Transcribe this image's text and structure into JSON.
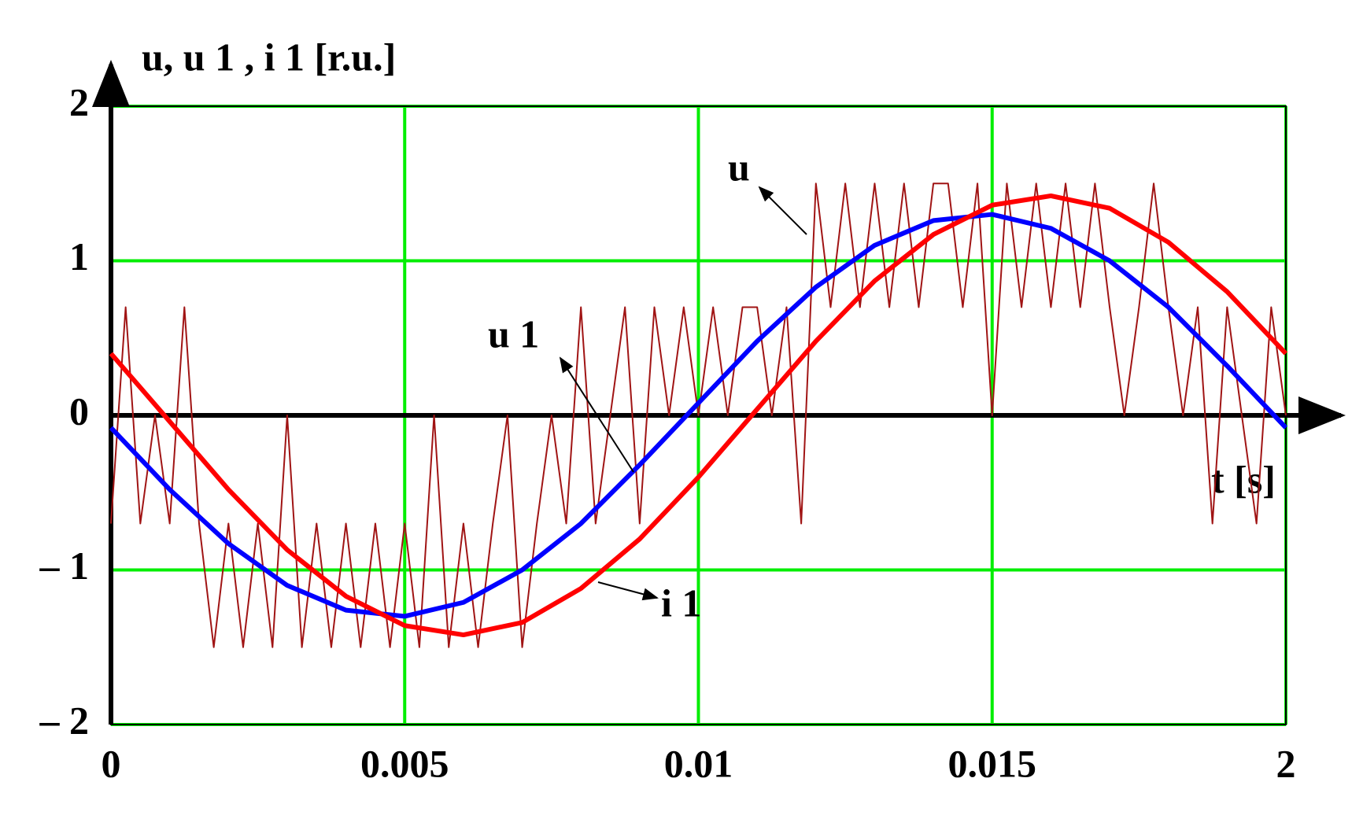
{
  "chart_data": {
    "type": "line",
    "y_label": "u, u 1 , i 1 [r.u.]",
    "x_label": "t [s]",
    "xlim": [
      0,
      0.02
    ],
    "ylim": [
      -2,
      2
    ],
    "xticks": [
      0,
      0.005,
      0.01,
      0.015,
      {
        "value": 0.02,
        "label": "2"
      }
    ],
    "yticks": [
      {
        "value": -2,
        "label": "– 2"
      },
      {
        "value": -1,
        "label": "– 1"
      },
      0,
      1,
      2
    ],
    "grid": true,
    "grid_color": "#00ee00",
    "series": [
      {
        "name": "u",
        "color": "#a01414",
        "width": 2,
        "x": [
          0,
          0.00025,
          0.0005,
          0.00075,
          0.001,
          0.00125,
          0.0015,
          0.00175,
          0.002,
          0.00225,
          0.0025,
          0.00275,
          0.003,
          0.00325,
          0.0035,
          0.00375,
          0.004,
          0.00425,
          0.0045,
          0.00475,
          0.005,
          0.00525,
          0.0055,
          0.00575,
          0.006,
          0.00625,
          0.0065,
          0.00675,
          0.007,
          0.00725,
          0.0075,
          0.00775,
          0.008,
          0.00825,
          0.0085,
          0.00875,
          0.009,
          0.00925,
          0.0095,
          0.00975,
          0.01,
          0.01025,
          0.0105,
          0.01075,
          0.011,
          0.01125,
          0.0115,
          0.01175,
          0.012,
          0.01225,
          0.0125,
          0.01275,
          0.013,
          0.01325,
          0.0135,
          0.01375,
          0.014,
          0.01425,
          0.0145,
          0.01475,
          0.015,
          0.01525,
          0.0155,
          0.01575,
          0.016,
          0.01625,
          0.0165,
          0.01675,
          0.017,
          0.01725,
          0.0175,
          0.01775,
          0.018,
          0.01825,
          0.0185,
          0.01875,
          0.019,
          0.01925,
          0.0195,
          0.01975,
          0.02
        ],
        "values": [
          -0.7,
          0.7,
          -0.7,
          0,
          -0.7,
          0.7,
          -0.7,
          -1.5,
          -0.7,
          -1.5,
          -0.7,
          -1.5,
          0,
          -1.5,
          -0.7,
          -1.5,
          -0.7,
          -1.5,
          -0.7,
          -1.5,
          -0.7,
          -1.5,
          0,
          -1.5,
          -0.7,
          -1.5,
          -0.7,
          0,
          -1.5,
          -0.7,
          0,
          -0.7,
          0.7,
          -0.7,
          0,
          0.7,
          -0.7,
          0.7,
          0,
          0.7,
          0,
          0.7,
          0,
          0.7,
          0.7,
          0,
          0.7,
          -0.7,
          1.5,
          0.7,
          1.5,
          0.7,
          1.5,
          0.7,
          1.5,
          0.7,
          1.5,
          1.5,
          0.7,
          1.5,
          0,
          1.5,
          0.7,
          1.5,
          0.7,
          1.5,
          0.7,
          1.5,
          0.7,
          0,
          0.7,
          1.5,
          0.7,
          0,
          0.7,
          -0.7,
          0.7,
          0,
          -0.7,
          0.7,
          0
        ]
      },
      {
        "name": "u 1",
        "color": "#0000ff",
        "width": 6,
        "x": [
          0,
          0.001,
          0.002,
          0.003,
          0.004,
          0.005,
          0.006,
          0.007,
          0.008,
          0.009,
          0.01,
          0.011,
          0.012,
          0.013,
          0.014,
          0.015,
          0.016,
          0.017,
          0.018,
          0.019,
          0.02
        ],
        "values": [
          -0.08,
          -0.48,
          -0.83,
          -1.1,
          -1.26,
          -1.3,
          -1.21,
          -1,
          -0.7,
          -0.32,
          0.08,
          0.48,
          0.83,
          1.1,
          1.26,
          1.3,
          1.21,
          1,
          0.7,
          0.32,
          -0.08
        ]
      },
      {
        "name": "i 1",
        "color": "#ff0000",
        "width": 6,
        "x": [
          0,
          0.001,
          0.002,
          0.003,
          0.004,
          0.005,
          0.006,
          0.007,
          0.008,
          0.009,
          0.01,
          0.011,
          0.012,
          0.013,
          0.014,
          0.015,
          0.016,
          0.017,
          0.018,
          0.019,
          0.02
        ],
        "values": [
          0.4,
          -0.04,
          -0.48,
          -0.87,
          -1.17,
          -1.36,
          -1.42,
          -1.34,
          -1.12,
          -0.8,
          -0.4,
          0.04,
          0.48,
          0.87,
          1.17,
          1.36,
          1.42,
          1.34,
          1.12,
          0.8,
          0.4
        ]
      }
    ]
  }
}
